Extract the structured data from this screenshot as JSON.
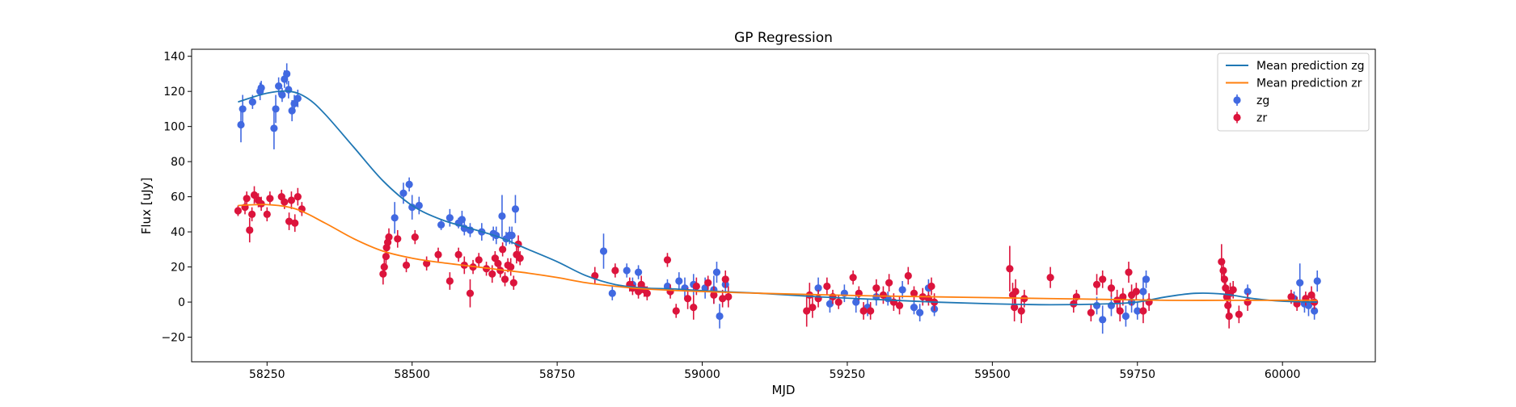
{
  "chart_data": {
    "type": "scatter",
    "title": "GP Regression",
    "xlabel": "MJD",
    "ylabel": "Flux [uJy]",
    "xlim": [
      58120,
      60160
    ],
    "ylim": [
      -34,
      144
    ],
    "x_ticks": [
      58250,
      58500,
      58750,
      59000,
      59250,
      59500,
      59750,
      60000
    ],
    "y_ticks": [
      -20,
      0,
      20,
      40,
      60,
      80,
      100,
      120,
      140
    ],
    "grid": false,
    "legend_position": "top-right",
    "colors": {
      "zg_line": "#1f77b4",
      "zr_line": "#ff7f0e",
      "zg_points": "#4169e1",
      "zr_points": "#dc143c"
    },
    "legend": [
      {
        "label": "Mean prediction zg",
        "kind": "line",
        "color": "#1f77b4"
      },
      {
        "label": "Mean prediction zr",
        "kind": "line",
        "color": "#ff7f0e"
      },
      {
        "label": "zg",
        "kind": "errorbar",
        "color": "#4169e1"
      },
      {
        "label": "zr",
        "kind": "errorbar",
        "color": "#dc143c"
      }
    ],
    "series": [
      {
        "name": "Mean prediction zg",
        "kind": "line",
        "color": "#1f77b4",
        "x": [
          58200,
          58250,
          58290,
          58320,
          58350,
          58400,
          58450,
          58500,
          58550,
          58600,
          58650,
          58700,
          58750,
          58800,
          58850,
          58900,
          58950,
          59000,
          59100,
          59200,
          59300,
          59400,
          59500,
          59600,
          59700,
          59750,
          59800,
          59850,
          59900,
          59950,
          60000,
          60060
        ],
        "y": [
          114,
          119,
          120,
          116,
          107,
          88,
          69,
          55,
          47,
          42,
          37,
          30,
          23,
          15,
          10,
          8,
          7.5,
          6.5,
          5,
          3,
          1.5,
          0,
          -1,
          -1.5,
          -1,
          0,
          3,
          5,
          4.5,
          2,
          0.5,
          0
        ]
      },
      {
        "name": "Mean prediction zr",
        "kind": "line",
        "color": "#ff7f0e",
        "x": [
          58200,
          58250,
          58300,
          58350,
          58400,
          58450,
          58500,
          58550,
          58600,
          58650,
          58700,
          58750,
          58800,
          58850,
          58900,
          59000,
          59100,
          59200,
          59300,
          59400,
          59500,
          59600,
          59700,
          59800,
          59900,
          60000,
          60060
        ],
        "y": [
          55,
          55.5,
          53,
          45,
          36,
          29,
          25,
          22.5,
          20.5,
          18.5,
          16.5,
          14,
          11,
          9,
          7.5,
          6,
          5,
          4.2,
          3.5,
          3,
          2.5,
          2,
          1.5,
          1,
          1,
          1,
          1
        ]
      },
      {
        "name": "zg",
        "kind": "errorbar",
        "color": "#4169e1",
        "points": [
          [
            58205,
            101,
            10
          ],
          [
            58208,
            110,
            8
          ],
          [
            58225,
            114,
            4
          ],
          [
            58238,
            120,
            5
          ],
          [
            58240,
            122,
            4
          ],
          [
            58262,
            99,
            12
          ],
          [
            58265,
            110,
            8
          ],
          [
            58270,
            123,
            5
          ],
          [
            58276,
            118,
            4
          ],
          [
            58280,
            127,
            5
          ],
          [
            58284,
            130,
            6
          ],
          [
            58287,
            121,
            5
          ],
          [
            58293,
            109,
            6
          ],
          [
            58297,
            113,
            5
          ],
          [
            58303,
            116,
            5
          ],
          [
            58470,
            48,
            9
          ],
          [
            58485,
            62,
            6
          ],
          [
            58495,
            67,
            4
          ],
          [
            58500,
            54,
            7
          ],
          [
            58512,
            55,
            5
          ],
          [
            58550,
            44,
            3
          ],
          [
            58565,
            48,
            5
          ],
          [
            58580,
            45,
            3
          ],
          [
            58586,
            47,
            5
          ],
          [
            58590,
            42,
            4
          ],
          [
            58600,
            41,
            4
          ],
          [
            58620,
            40,
            5
          ],
          [
            58640,
            39,
            4
          ],
          [
            58645,
            38,
            5
          ],
          [
            58655,
            49,
            12
          ],
          [
            58662,
            36,
            4
          ],
          [
            58668,
            38,
            5
          ],
          [
            58672,
            38,
            5
          ],
          [
            58678,
            53,
            8
          ],
          [
            58830,
            29,
            10
          ],
          [
            58845,
            5,
            4
          ],
          [
            58870,
            18,
            4
          ],
          [
            58880,
            10,
            4
          ],
          [
            58890,
            17,
            4
          ],
          [
            58940,
            9,
            4
          ],
          [
            58960,
            12,
            5
          ],
          [
            58970,
            8,
            6
          ],
          [
            58985,
            10,
            6
          ],
          [
            59005,
            8,
            6
          ],
          [
            59020,
            7,
            8
          ],
          [
            59025,
            17,
            6
          ],
          [
            59030,
            -8,
            7
          ],
          [
            59040,
            10,
            5
          ],
          [
            59200,
            8,
            6
          ],
          [
            59220,
            -1,
            5
          ],
          [
            59245,
            5,
            5
          ],
          [
            59265,
            0,
            6
          ],
          [
            59285,
            -3,
            5
          ],
          [
            59300,
            3,
            5
          ],
          [
            59320,
            2,
            4
          ],
          [
            59345,
            7,
            5
          ],
          [
            59365,
            -3,
            4
          ],
          [
            59375,
            -6,
            5
          ],
          [
            59390,
            8,
            5
          ],
          [
            59400,
            -4,
            4
          ],
          [
            59680,
            -2,
            5
          ],
          [
            59690,
            -10,
            8
          ],
          [
            59705,
            -2,
            6
          ],
          [
            59730,
            -8,
            6
          ],
          [
            59740,
            0,
            6
          ],
          [
            59750,
            -5,
            5
          ],
          [
            59760,
            6,
            8
          ],
          [
            59765,
            13,
            5
          ],
          [
            59940,
            6,
            4
          ],
          [
            60020,
            2,
            4
          ],
          [
            60030,
            11,
            11
          ],
          [
            60038,
            -1,
            5
          ],
          [
            60045,
            -2,
            6
          ],
          [
            60055,
            -5,
            5
          ],
          [
            60060,
            12,
            6
          ]
        ]
      },
      {
        "name": "zr",
        "kind": "errorbar",
        "color": "#dc143c",
        "points": [
          [
            58200,
            52,
            3
          ],
          [
            58212,
            54,
            4
          ],
          [
            58215,
            59,
            4
          ],
          [
            58220,
            41,
            7
          ],
          [
            58224,
            50,
            4
          ],
          [
            58228,
            61,
            5
          ],
          [
            58235,
            58,
            4
          ],
          [
            58240,
            56,
            4
          ],
          [
            58250,
            50,
            4
          ],
          [
            58255,
            59,
            4
          ],
          [
            58275,
            60,
            4
          ],
          [
            58280,
            57,
            4
          ],
          [
            58288,
            46,
            5
          ],
          [
            58292,
            58,
            5
          ],
          [
            58298,
            45,
            5
          ],
          [
            58303,
            60,
            5
          ],
          [
            58310,
            53,
            4
          ],
          [
            58450,
            16,
            6
          ],
          [
            58452,
            20,
            5
          ],
          [
            58455,
            26,
            5
          ],
          [
            58456,
            31,
            5
          ],
          [
            58458,
            34,
            5
          ],
          [
            58460,
            37,
            5
          ],
          [
            58475,
            36,
            5
          ],
          [
            58490,
            21,
            4
          ],
          [
            58505,
            37,
            4
          ],
          [
            58525,
            22,
            4
          ],
          [
            58545,
            27,
            4
          ],
          [
            58565,
            12,
            5
          ],
          [
            58580,
            27,
            4
          ],
          [
            58590,
            21,
            5
          ],
          [
            58600,
            5,
            8
          ],
          [
            58605,
            20,
            4
          ],
          [
            58615,
            24,
            4
          ],
          [
            58628,
            19,
            4
          ],
          [
            58638,
            16,
            5
          ],
          [
            58643,
            25,
            4
          ],
          [
            58648,
            22,
            4
          ],
          [
            58652,
            18,
            4
          ],
          [
            58656,
            30,
            4
          ],
          [
            58660,
            13,
            4
          ],
          [
            58665,
            21,
            4
          ],
          [
            58670,
            20,
            5
          ],
          [
            58675,
            11,
            4
          ],
          [
            58680,
            27,
            5
          ],
          [
            58683,
            33,
            5
          ],
          [
            58686,
            25,
            4
          ],
          [
            58815,
            15,
            5
          ],
          [
            58850,
            18,
            4
          ],
          [
            58875,
            10,
            4
          ],
          [
            58880,
            8,
            4
          ],
          [
            58890,
            6,
            4
          ],
          [
            58895,
            10,
            5
          ],
          [
            58900,
            7,
            4
          ],
          [
            58905,
            5,
            4
          ],
          [
            58940,
            24,
            4
          ],
          [
            58945,
            6,
            4
          ],
          [
            58955,
            -5,
            4
          ],
          [
            58975,
            2,
            6
          ],
          [
            58985,
            -3,
            7
          ],
          [
            58990,
            9,
            5
          ],
          [
            59010,
            11,
            4
          ],
          [
            59020,
            4,
            5
          ],
          [
            59035,
            2,
            5
          ],
          [
            59040,
            13,
            5
          ],
          [
            59045,
            3,
            6
          ],
          [
            59180,
            -5,
            9
          ],
          [
            59185,
            4,
            7
          ],
          [
            59190,
            -3,
            6
          ],
          [
            59200,
            2,
            5
          ],
          [
            59215,
            9,
            5
          ],
          [
            59225,
            3,
            4
          ],
          [
            59235,
            0,
            4
          ],
          [
            59260,
            14,
            4
          ],
          [
            59270,
            5,
            4
          ],
          [
            59278,
            -5,
            5
          ],
          [
            59290,
            -5,
            5
          ],
          [
            59300,
            8,
            5
          ],
          [
            59312,
            4,
            5
          ],
          [
            59322,
            11,
            5
          ],
          [
            59330,
            0,
            5
          ],
          [
            59340,
            -2,
            5
          ],
          [
            59355,
            15,
            5
          ],
          [
            59365,
            5,
            4
          ],
          [
            59380,
            3,
            5
          ],
          [
            59390,
            2,
            4
          ],
          [
            59395,
            9,
            5
          ],
          [
            59400,
            0,
            5
          ],
          [
            59530,
            19,
            13
          ],
          [
            59535,
            4,
            7
          ],
          [
            59538,
            -3,
            8
          ],
          [
            59540,
            6,
            7
          ],
          [
            59550,
            -5,
            7
          ],
          [
            59555,
            2,
            5
          ],
          [
            59600,
            14,
            6
          ],
          [
            59640,
            -1,
            5
          ],
          [
            59645,
            3,
            4
          ],
          [
            59670,
            -6,
            5
          ],
          [
            59680,
            10,
            6
          ],
          [
            59690,
            13,
            5
          ],
          [
            59705,
            8,
            5
          ],
          [
            59715,
            1,
            6
          ],
          [
            59720,
            -5,
            6
          ],
          [
            59725,
            3,
            5
          ],
          [
            59735,
            17,
            6
          ],
          [
            59740,
            4,
            6
          ],
          [
            59748,
            6,
            5
          ],
          [
            59760,
            -5,
            7
          ],
          [
            59770,
            0,
            5
          ],
          [
            59895,
            23,
            10
          ],
          [
            59898,
            18,
            7
          ],
          [
            59900,
            13,
            6
          ],
          [
            59902,
            8,
            6
          ],
          [
            59904,
            3,
            6
          ],
          [
            59906,
            -2,
            6
          ],
          [
            59908,
            -8,
            7
          ],
          [
            59910,
            5,
            6
          ],
          [
            59915,
            7,
            5
          ],
          [
            59925,
            -7,
            5
          ],
          [
            59940,
            0,
            5
          ],
          [
            60015,
            3,
            4
          ],
          [
            60025,
            -1,
            4
          ],
          [
            60040,
            2,
            4
          ],
          [
            60050,
            4,
            5
          ],
          [
            60055,
            0,
            4
          ]
        ]
      }
    ]
  }
}
